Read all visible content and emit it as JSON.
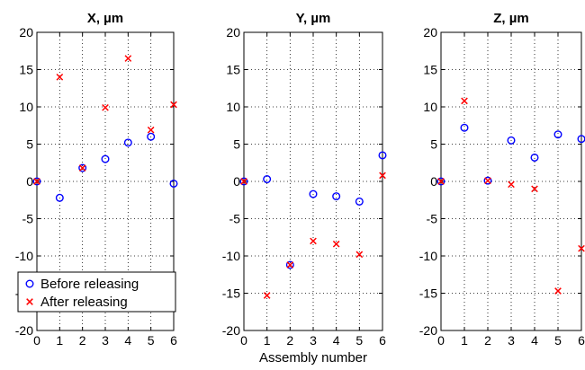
{
  "colors": {
    "before": "#0000ff",
    "after": "#ff0000"
  },
  "legend": {
    "location": "lower-left of first panel",
    "entries": [
      {
        "label": "Before releasing",
        "marker": "circle",
        "color": "#0000ff"
      },
      {
        "label": "After releasing",
        "marker": "x",
        "color": "#ff0000"
      }
    ]
  },
  "chart_data": [
    {
      "type": "scatter",
      "title": "X, µm",
      "xlabel": "",
      "xlim": [
        0,
        6
      ],
      "ylim": [
        -20,
        20
      ],
      "xticks": [
        0,
        1,
        2,
        3,
        4,
        5,
        6
      ],
      "yticks": [
        -20,
        -15,
        -10,
        -5,
        0,
        5,
        10,
        15,
        20
      ],
      "grid": true,
      "x": [
        0,
        1,
        2,
        3,
        4,
        5,
        6
      ],
      "series": [
        {
          "name": "Before releasing",
          "marker": "circle",
          "values": [
            0,
            -2.2,
            1.8,
            3.0,
            5.2,
            6.0,
            -0.3
          ]
        },
        {
          "name": "After releasing",
          "marker": "x",
          "values": [
            0,
            14.0,
            1.8,
            9.9,
            16.5,
            6.9,
            10.3
          ]
        }
      ]
    },
    {
      "type": "scatter",
      "title": "Y, µm",
      "xlabel": "Assembly number",
      "xlim": [
        0,
        6
      ],
      "ylim": [
        -20,
        20
      ],
      "xticks": [
        0,
        1,
        2,
        3,
        4,
        5,
        6
      ],
      "yticks": [
        -20,
        -15,
        -10,
        -5,
        0,
        5,
        10,
        15,
        20
      ],
      "grid": true,
      "x": [
        0,
        1,
        2,
        3,
        4,
        5,
        6
      ],
      "series": [
        {
          "name": "Before releasing",
          "marker": "circle",
          "values": [
            0,
            0.3,
            -11.2,
            -1.7,
            -2.0,
            -2.7,
            3.5
          ]
        },
        {
          "name": "After releasing",
          "marker": "x",
          "values": [
            0,
            -15.3,
            -11.2,
            -8.0,
            -8.4,
            -9.8,
            0.8
          ]
        }
      ]
    },
    {
      "type": "scatter",
      "title": "Z, µm",
      "xlabel": "",
      "xlim": [
        0,
        6
      ],
      "ylim": [
        -20,
        20
      ],
      "xticks": [
        0,
        1,
        2,
        3,
        4,
        5,
        6
      ],
      "yticks": [
        -20,
        -15,
        -10,
        -5,
        0,
        5,
        10,
        15,
        20
      ],
      "grid": true,
      "x": [
        0,
        1,
        2,
        3,
        4,
        5,
        6
      ],
      "series": [
        {
          "name": "Before releasing",
          "marker": "circle",
          "values": [
            0,
            7.2,
            0.1,
            5.5,
            3.2,
            6.3,
            5.7
          ]
        },
        {
          "name": "After releasing",
          "marker": "x",
          "values": [
            0,
            10.8,
            0.1,
            -0.4,
            -1.0,
            -14.7,
            -9.0
          ]
        }
      ]
    }
  ]
}
